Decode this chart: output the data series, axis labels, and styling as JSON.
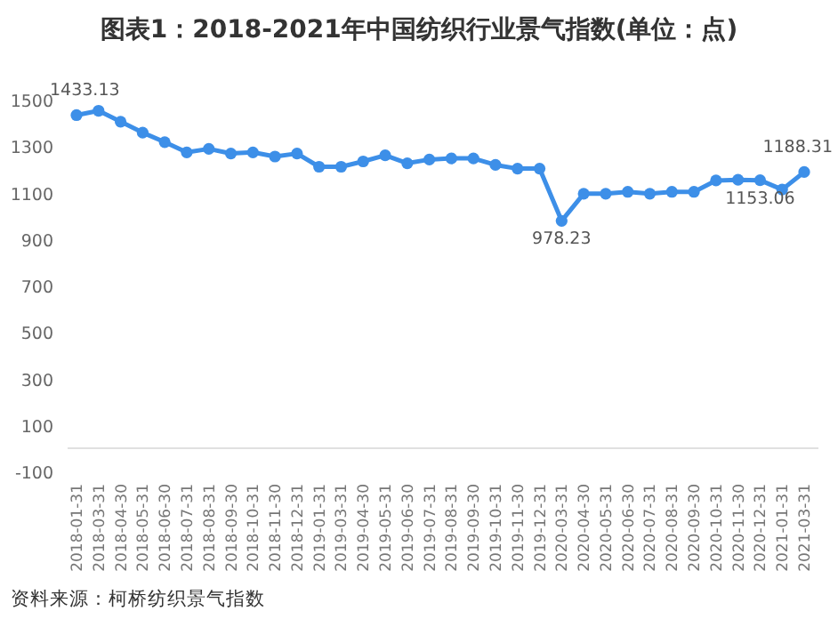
{
  "chart_data": {
    "type": "line",
    "title": "图表1：2018-2021年中国纺织行业景气指数(单位：点)",
    "categories": [
      "2018-01-31",
      "2018-03-31",
      "2018-04-30",
      "2018-05-31",
      "2018-06-30",
      "2018-07-31",
      "2018-08-31",
      "2018-09-30",
      "2018-10-31",
      "2018-11-30",
      "2018-12-31",
      "2019-01-31",
      "2019-03-31",
      "2019-04-30",
      "2019-05-31",
      "2019-06-30",
      "2019-07-31",
      "2019-08-31",
      "2019-09-30",
      "2019-10-31",
      "2019-11-30",
      "2019-12-31",
      "2020-03-31",
      "2020-04-30",
      "2020-05-31",
      "2020-06-30",
      "2020-07-31",
      "2020-08-31",
      "2020-09-30",
      "2020-10-31",
      "2020-11-30",
      "2020-12-31",
      "2021-01-31",
      "2021-03-31"
    ],
    "series": [
      {
        "color": "#3d8fe8",
        "values": [
          1433.13,
          1452,
          1405,
          1358,
          1317,
          1273,
          1288,
          1268,
          1273,
          1255,
          1268,
          1211,
          1211,
          1234,
          1260,
          1226,
          1242,
          1247,
          1247,
          1219,
          1203,
          1203,
          978.23,
          1095,
          1095,
          1103,
          1095,
          1103,
          1103,
          1152,
          1155,
          1153.06,
          1113,
          1188.31
        ],
        "value_labels": [
          "1433.13",
          null,
          null,
          null,
          null,
          null,
          null,
          null,
          null,
          null,
          null,
          null,
          null,
          null,
          null,
          null,
          null,
          null,
          null,
          null,
          null,
          null,
          "978.23",
          null,
          null,
          null,
          null,
          null,
          null,
          null,
          null,
          "1153.06",
          null,
          "1188.31"
        ]
      }
    ],
    "ylim": [
      -100,
      1500
    ],
    "yticks": [
      -100,
      100,
      300,
      500,
      700,
      900,
      1100,
      1300,
      1500
    ],
    "marker": "circle",
    "line_style": "solid",
    "grid": false,
    "annotations": [
      "资料来源：柯桥纺织景气指数"
    ]
  }
}
